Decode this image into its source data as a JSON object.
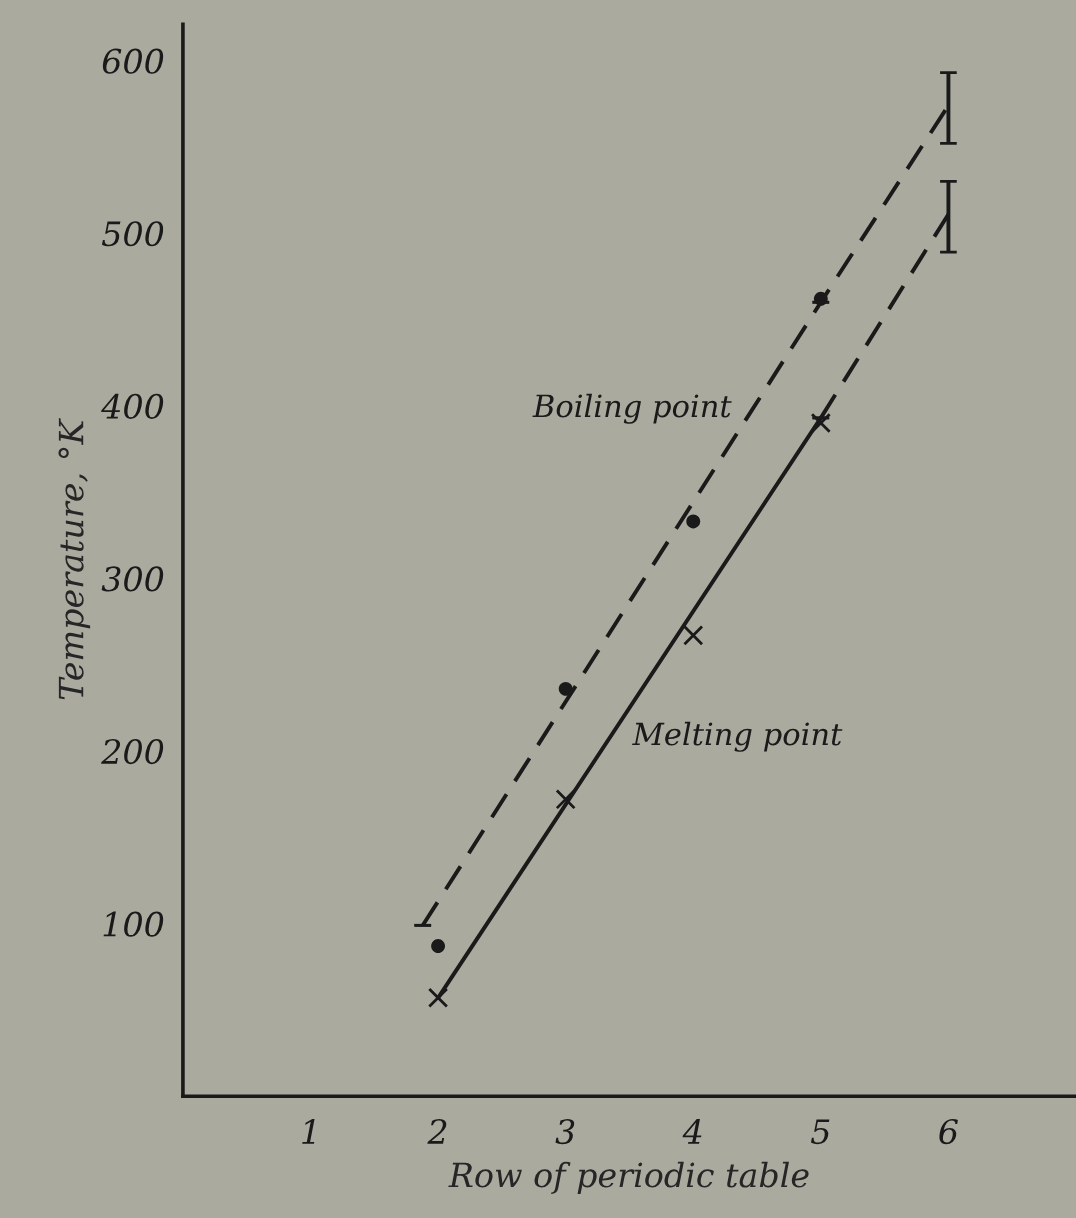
{
  "chart_data": {
    "type": "scatter",
    "xlabel": "Row of periodic table",
    "ylabel": "Temperature, °K",
    "xlim": [
      0,
      7
    ],
    "ylim": [
      0,
      621
    ],
    "xticks": [
      1,
      2,
      3,
      4,
      5,
      6
    ],
    "yticks": [
      100,
      200,
      300,
      400,
      500,
      600
    ],
    "grid": false,
    "legend": false,
    "series": [
      {
        "type": "line",
        "name": "Boiling point",
        "color": "#1a1a1a",
        "line_style": "dashed",
        "marker": "none",
        "x": [
          1.88,
          5,
          6
        ],
        "values": [
          99,
          460,
          574
        ],
        "errors": [
          null,
          null,
          [
            552,
            593
          ]
        ]
      },
      {
        "type": "line",
        "name": "Melting point",
        "color": "#1a1a1a",
        "line_style": "solid",
        "marker": "none",
        "x": [
          2,
          5
        ],
        "values": [
          57,
          393
        ]
      },
      {
        "type": "line",
        "color": "#1a1a1a",
        "line_style": "dashed",
        "marker": "none",
        "x": [
          5,
          6
        ],
        "values": [
          393,
          511
        ],
        "errors": [
          null,
          [
            489,
            530
          ]
        ]
      },
      {
        "color": "#1a1a1a",
        "marker": "circle",
        "x": [
          2,
          3,
          4,
          5
        ],
        "values": [
          87,
          236,
          333,
          462
        ]
      },
      {
        "color": "#1a1a1a",
        "marker": "cross",
        "x": [
          2,
          3,
          4,
          5
        ],
        "values": [
          57,
          172,
          267,
          390
        ]
      }
    ]
  }
}
